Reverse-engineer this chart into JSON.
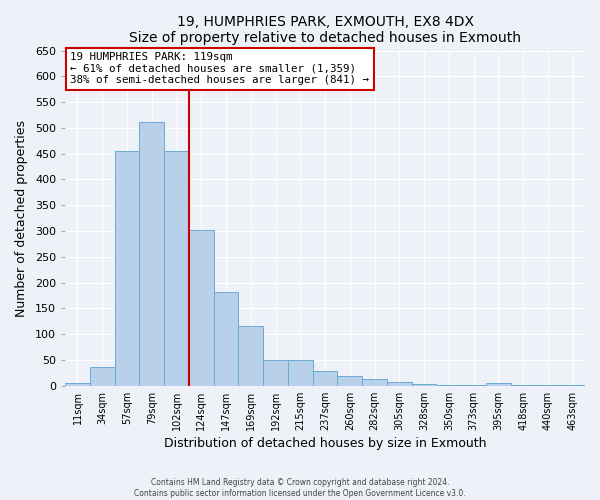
{
  "title": "19, HUMPHRIES PARK, EXMOUTH, EX8 4DX",
  "subtitle": "Size of property relative to detached houses in Exmouth",
  "xlabel": "Distribution of detached houses by size in Exmouth",
  "ylabel": "Number of detached properties",
  "bar_labels": [
    "11sqm",
    "34sqm",
    "57sqm",
    "79sqm",
    "102sqm",
    "124sqm",
    "147sqm",
    "169sqm",
    "192sqm",
    "215sqm",
    "237sqm",
    "260sqm",
    "282sqm",
    "305sqm",
    "328sqm",
    "350sqm",
    "373sqm",
    "395sqm",
    "418sqm",
    "440sqm",
    "463sqm"
  ],
  "bar_values": [
    5,
    36,
    456,
    511,
    456,
    302,
    181,
    115,
    50,
    50,
    29,
    20,
    14,
    7,
    3,
    1,
    1,
    5,
    1,
    1,
    2
  ],
  "bar_color": "#b8d0ea",
  "bar_edgecolor": "#6aaad4",
  "ylim": [
    0,
    650
  ],
  "yticks": [
    0,
    50,
    100,
    150,
    200,
    250,
    300,
    350,
    400,
    450,
    500,
    550,
    600,
    650
  ],
  "vline_color": "#cc0000",
  "vline_x": 4.5,
  "annotation_title": "19 HUMPHRIES PARK: 119sqm",
  "annotation_line1": "← 61% of detached houses are smaller (1,359)",
  "annotation_line2": "38% of semi-detached houses are larger (841) →",
  "annotation_box_color": "#ffffff",
  "annotation_box_edgecolor": "#cc0000",
  "footer1": "Contains HM Land Registry data © Crown copyright and database right 2024.",
  "footer2": "Contains public sector information licensed under the Open Government Licence v3.0.",
  "background_color": "#eef2f8",
  "grid_color": "#ffffff"
}
